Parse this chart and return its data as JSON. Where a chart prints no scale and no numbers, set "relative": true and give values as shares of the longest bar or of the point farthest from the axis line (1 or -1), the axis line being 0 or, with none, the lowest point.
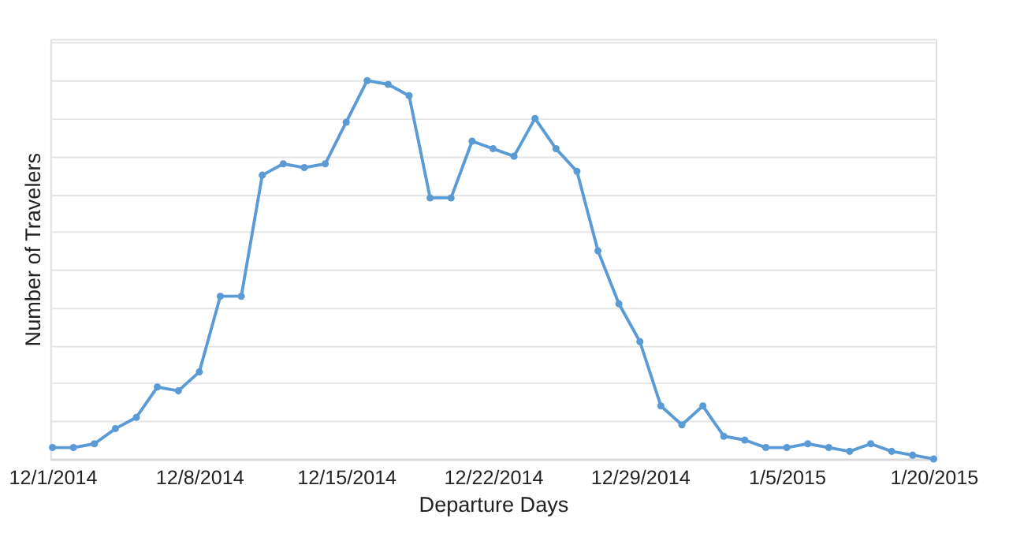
{
  "chart_data": {
    "type": "line",
    "xlabel": "Departure Days",
    "ylabel": "Number of Travelers",
    "relative": true,
    "grid": "y",
    "marker": "circle",
    "line_style": "solid",
    "categories": [
      "12/1/2014",
      null,
      null,
      null,
      null,
      null,
      null,
      "12/8/2014",
      null,
      null,
      null,
      null,
      null,
      null,
      "12/15/2014",
      null,
      null,
      null,
      null,
      null,
      null,
      "12/22/2014",
      null,
      null,
      null,
      null,
      null,
      null,
      "12/29/2014",
      null,
      null,
      null,
      null,
      null,
      null,
      "1/5/2015",
      null,
      null,
      null,
      null,
      null,
      null,
      "1/20/2015"
    ],
    "series": [
      {
        "color": "#5b9bd5",
        "values": [
          0.03,
          0.03,
          0.04,
          0.08,
          0.11,
          0.19,
          0.18,
          0.23,
          0.43,
          0.43,
          0.75,
          0.78,
          0.77,
          0.78,
          0.89,
          1,
          0.99,
          0.96,
          0.69,
          0.69,
          0.84,
          0.82,
          0.8,
          0.9,
          0.82,
          0.76,
          0.55,
          0.41,
          0.31,
          0.14,
          0.09,
          0.14,
          0.06,
          0.05,
          0.03,
          0.03,
          0.04,
          0.03,
          0.02,
          0.04,
          0.02,
          0.01,
          0.0
        ]
      }
    ]
  }
}
